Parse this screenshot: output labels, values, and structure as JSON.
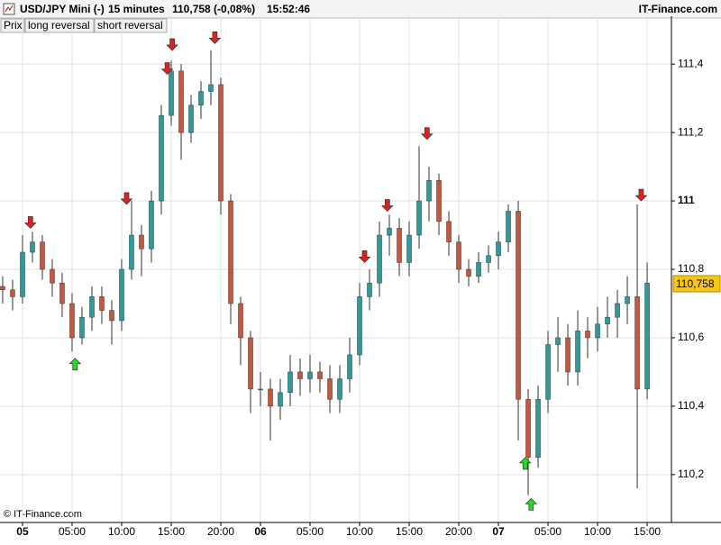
{
  "header": {
    "symbol": "USD/JPY Mini (-)",
    "timeframe": "15 minutes",
    "quote": "110,758 (-0,08%)",
    "time": "15:52:46",
    "brand": "IT-Finance.com"
  },
  "tabs": [
    "Prix",
    "long reversal",
    "short reversal"
  ],
  "footer": "© IT-Finance.com",
  "chart_data": {
    "type": "candlestick",
    "x": [
      -2,
      -1,
      0,
      1,
      2,
      3,
      4,
      5,
      6,
      7,
      8,
      9,
      10,
      11,
      12,
      13,
      14,
      15,
      16,
      17,
      18,
      19,
      20,
      21,
      22,
      23,
      24,
      25,
      26,
      27,
      28,
      29,
      30,
      31,
      32,
      33,
      34,
      35,
      36,
      37,
      38,
      39,
      40,
      41,
      42,
      43,
      44,
      45,
      46,
      47,
      48,
      49,
      50,
      51,
      52,
      53,
      54,
      55,
      56,
      57,
      58,
      59,
      60,
      61,
      62,
      63
    ],
    "open": [
      110.75,
      110.74,
      110.72,
      110.85,
      110.88,
      110.8,
      110.76,
      110.7,
      110.6,
      110.66,
      110.72,
      110.68,
      110.65,
      110.8,
      110.9,
      110.86,
      111.0,
      111.25,
      111.38,
      111.2,
      111.28,
      111.32,
      111.34,
      111.0,
      110.7,
      110.6,
      110.45,
      110.45,
      110.4,
      110.44,
      110.5,
      110.48,
      110.5,
      110.48,
      110.42,
      110.48,
      110.55,
      110.72,
      110.76,
      110.9,
      110.92,
      110.82,
      110.9,
      111.0,
      111.06,
      110.94,
      110.88,
      110.8,
      110.78,
      110.82,
      110.84,
      110.88,
      110.97,
      110.42,
      110.25,
      110.42,
      110.58,
      110.6,
      110.5,
      110.62,
      110.6,
      110.64,
      110.66,
      110.7,
      110.72,
      110.45
    ],
    "high": [
      110.78,
      110.77,
      110.9,
      110.91,
      110.9,
      110.83,
      110.79,
      110.73,
      110.69,
      110.75,
      110.75,
      110.71,
      110.83,
      111.0,
      110.93,
      111.03,
      111.28,
      111.41,
      111.4,
      111.31,
      111.35,
      111.44,
      111.36,
      111.02,
      110.72,
      110.62,
      110.5,
      110.48,
      110.48,
      110.55,
      110.54,
      110.55,
      110.53,
      110.52,
      110.52,
      110.6,
      110.76,
      110.8,
      110.94,
      110.96,
      110.95,
      110.94,
      111.16,
      111.1,
      111.08,
      110.97,
      110.9,
      110.83,
      110.85,
      110.87,
      110.91,
      110.99,
      111.0,
      110.45,
      110.46,
      110.62,
      110.66,
      110.64,
      110.68,
      110.66,
      110.69,
      110.72,
      110.74,
      110.78,
      110.99,
      110.82
    ],
    "low": [
      110.7,
      110.68,
      110.7,
      110.82,
      110.77,
      110.72,
      110.66,
      110.56,
      110.58,
      110.62,
      110.64,
      110.58,
      110.62,
      110.77,
      110.78,
      110.82,
      110.96,
      111.22,
      111.12,
      111.17,
      111.24,
      111.28,
      110.96,
      110.64,
      110.52,
      110.38,
      110.4,
      110.3,
      110.36,
      110.4,
      110.43,
      110.44,
      110.44,
      110.38,
      110.38,
      110.44,
      110.52,
      110.68,
      110.72,
      110.84,
      110.78,
      110.78,
      110.86,
      110.94,
      110.9,
      110.84,
      110.76,
      110.75,
      110.76,
      110.79,
      110.8,
      110.85,
      110.3,
      110.14,
      110.22,
      110.38,
      110.5,
      110.46,
      110.46,
      110.54,
      110.56,
      110.6,
      110.6,
      110.64,
      110.16,
      110.42
    ],
    "close": [
      110.74,
      110.72,
      110.85,
      110.88,
      110.8,
      110.76,
      110.7,
      110.6,
      110.66,
      110.72,
      110.68,
      110.65,
      110.8,
      110.9,
      110.86,
      111.0,
      111.25,
      111.38,
      111.2,
      111.28,
      111.32,
      111.34,
      111.0,
      110.7,
      110.6,
      110.45,
      110.45,
      110.4,
      110.44,
      110.5,
      110.48,
      110.5,
      110.48,
      110.42,
      110.48,
      110.55,
      110.72,
      110.76,
      110.9,
      110.92,
      110.82,
      110.9,
      111.0,
      111.06,
      110.94,
      110.88,
      110.8,
      110.78,
      110.82,
      110.84,
      110.88,
      110.97,
      110.42,
      110.25,
      110.42,
      110.58,
      110.6,
      110.5,
      110.62,
      110.6,
      110.64,
      110.66,
      110.7,
      110.72,
      110.45,
      110.76
    ],
    "up_color": "#2f9a9a",
    "down_color": "#c8553d",
    "signals": [
      {
        "name": "long reversal",
        "direction": "up",
        "color": "#22dd22",
        "x": [
          5.3,
          50.7,
          51.3
        ],
        "values": [
          110.54,
          110.25,
          110.13
        ]
      },
      {
        "name": "short reversal",
        "direction": "down",
        "color": "#e02020",
        "x": [
          0.8,
          10.5,
          14.6,
          15.1,
          19.4,
          34.5,
          36.8,
          40.8,
          62.4
        ],
        "values": [
          110.92,
          110.99,
          111.37,
          111.44,
          111.46,
          110.82,
          110.97,
          111.18,
          111.0
        ]
      }
    ],
    "last_price": {
      "value": 110.758,
      "label": "110,758"
    },
    "xlim": [
      -2.27,
      65.45
    ],
    "xticks": [
      {
        "value": 0,
        "label": "05"
      },
      {
        "value": 5,
        "label": "05:00"
      },
      {
        "value": 10,
        "label": "10:00"
      },
      {
        "value": 15,
        "label": "15:00"
      },
      {
        "value": 20,
        "label": "20:00"
      },
      {
        "value": 24,
        "label": "06"
      },
      {
        "value": 29,
        "label": "05:00"
      },
      {
        "value": 34,
        "label": "10:00"
      },
      {
        "value": 39,
        "label": "15:00"
      },
      {
        "value": 44,
        "label": "20:00"
      },
      {
        "value": 48,
        "label": "07"
      },
      {
        "value": 53,
        "label": "05:00"
      },
      {
        "value": 58,
        "label": "10:00"
      },
      {
        "value": 63,
        "label": "15:00"
      }
    ],
    "ylim": [
      110.06,
      111.54
    ],
    "yticks": [
      {
        "value": 110.2,
        "label": "110,2"
      },
      {
        "value": 110.4,
        "label": "110,4"
      },
      {
        "value": 110.6,
        "label": "110,6"
      },
      {
        "value": 110.8,
        "label": "110,8"
      },
      111,
      {
        "value": 111.2,
        "label": "111,2"
      },
      {
        "value": 111.4,
        "label": "111,4"
      }
    ],
    "grid": true
  }
}
